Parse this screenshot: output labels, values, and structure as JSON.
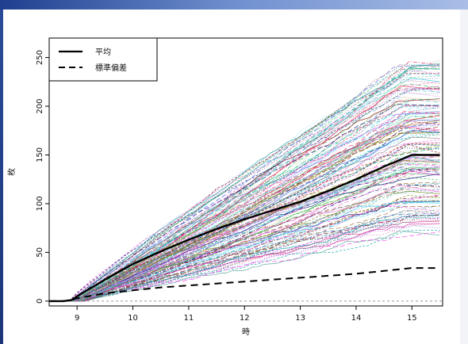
{
  "chart_data": {
    "type": "line",
    "title": "",
    "xlabel": "時",
    "ylabel": "枚",
    "xlim": [
      8.5,
      15.55
    ],
    "ylim": [
      -5,
      270
    ],
    "x_ticks": [
      9,
      10,
      11,
      12,
      13,
      14,
      15
    ],
    "y_ticks": [
      0,
      50,
      100,
      150,
      200,
      250
    ],
    "x_tick_labels": [
      "9",
      "10",
      "11",
      "12",
      "13",
      "14",
      "15"
    ],
    "y_tick_labels": [
      "0",
      "50",
      "100",
      "150",
      "200",
      "250"
    ],
    "grid": false,
    "baseline": 0,
    "legend_position": "top-left",
    "legend": [
      {
        "label": "平均",
        "style": "solid"
      },
      {
        "label": "標準偏差",
        "style": "dashed"
      }
    ],
    "series": [
      {
        "name": "平均",
        "style": "solid",
        "color": "#000000",
        "x": [
          8.5,
          8.75,
          8.9,
          9.0,
          9.5,
          10.0,
          10.5,
          11.0,
          11.5,
          12.0,
          12.5,
          13.0,
          13.5,
          14.0,
          14.5,
          15.0,
          15.5
        ],
        "y": [
          0,
          0,
          1,
          5,
          22,
          38,
          51,
          63,
          74,
          84,
          93,
          102,
          113,
          125,
          138,
          150,
          150
        ]
      },
      {
        "name": "標準偏差",
        "style": "dashed",
        "color": "#000000",
        "x": [
          8.5,
          8.75,
          8.9,
          9.0,
          9.5,
          10.0,
          10.5,
          11.0,
          11.5,
          12.0,
          12.5,
          13.0,
          13.5,
          14.0,
          14.5,
          15.0,
          15.5
        ],
        "y": [
          0,
          0,
          1,
          3,
          8,
          11,
          14,
          16,
          18,
          20,
          22,
          24,
          26,
          28,
          31,
          34,
          34
        ]
      }
    ],
    "simulated_paths": {
      "count": 160,
      "final_value_range": [
        65,
        248
      ],
      "colors": [
        "#e6194b",
        "#3cb44b",
        "#4363d8",
        "#f032e6",
        "#42d4f4",
        "#469990",
        "#dcbeff",
        "#9a6324",
        "#800000",
        "#000075",
        "#808000",
        "#00a0a0",
        "#ff66cc",
        "#66cc99",
        "#9999ff",
        "#cc3399",
        "#33cccc",
        "#7f7f7f"
      ]
    }
  }
}
